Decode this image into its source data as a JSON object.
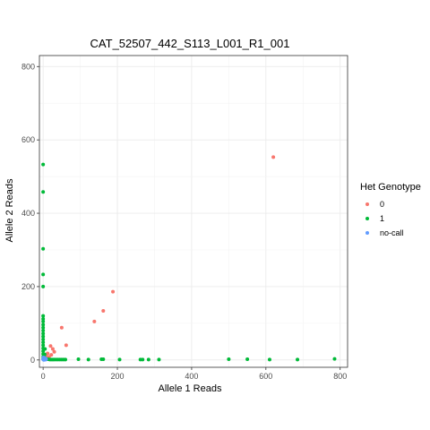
{
  "chart_data": {
    "type": "scatter",
    "title": "CAT_52507_442_S113_L001_R1_001",
    "xlabel": "Allele 1 Reads",
    "ylabel": "Allele 2 Reads",
    "xlim": [
      -10,
      820
    ],
    "ylim": [
      -20,
      830
    ],
    "x_ticks": [
      "0",
      "200",
      "400",
      "600",
      "800"
    ],
    "y_ticks": [
      "0",
      "200",
      "400",
      "600",
      "800"
    ],
    "grid": true,
    "legend": {
      "title": "Het Genotype",
      "placement": "right",
      "entries": [
        "0",
        "1",
        "no-call"
      ]
    },
    "series": [
      {
        "name": "0",
        "color": "#F8766D",
        "points": [
          [
            620,
            553
          ],
          [
            188,
            186
          ],
          [
            162,
            134
          ],
          [
            138,
            105
          ],
          [
            50,
            88
          ],
          [
            62,
            40
          ],
          [
            20,
            38
          ],
          [
            26,
            30
          ],
          [
            30,
            22
          ],
          [
            12,
            18
          ],
          [
            8,
            12
          ],
          [
            16,
            8
          ],
          [
            4,
            6
          ],
          [
            22,
            14
          ]
        ]
      },
      {
        "name": "1",
        "color": "#00BA38",
        "points": [
          [
            0,
            533
          ],
          [
            0,
            458
          ],
          [
            0,
            303
          ],
          [
            0,
            233
          ],
          [
            0,
            200
          ],
          [
            0,
            120
          ],
          [
            0,
            112
          ],
          [
            0,
            105
          ],
          [
            0,
            96
          ],
          [
            0,
            88
          ],
          [
            0,
            80
          ],
          [
            0,
            72
          ],
          [
            0,
            64
          ],
          [
            0,
            56
          ],
          [
            0,
            48
          ],
          [
            0,
            40
          ],
          [
            0,
            32
          ],
          [
            0,
            24
          ],
          [
            0,
            16
          ],
          [
            0,
            8
          ],
          [
            0,
            3
          ],
          [
            5,
            30
          ],
          [
            4,
            15
          ],
          [
            6,
            5
          ],
          [
            10,
            2
          ],
          [
            14,
            2
          ],
          [
            18,
            1
          ],
          [
            22,
            1
          ],
          [
            26,
            1
          ],
          [
            30,
            1
          ],
          [
            35,
            1
          ],
          [
            40,
            1
          ],
          [
            45,
            1
          ],
          [
            50,
            1
          ],
          [
            55,
            1
          ],
          [
            60,
            1
          ],
          [
            95,
            2
          ],
          [
            122,
            1
          ],
          [
            157,
            2
          ],
          [
            162,
            2
          ],
          [
            206,
            1
          ],
          [
            262,
            1
          ],
          [
            268,
            1
          ],
          [
            284,
            1
          ],
          [
            312,
            1
          ],
          [
            500,
            2
          ],
          [
            550,
            2
          ],
          [
            610,
            1
          ],
          [
            685,
            1
          ],
          [
            785,
            3
          ]
        ]
      },
      {
        "name": "no-call",
        "color": "#619CFF",
        "points": [
          [
            1,
            1
          ],
          [
            2,
            3
          ],
          [
            3,
            2
          ],
          [
            1,
            5
          ],
          [
            4,
            1
          ],
          [
            2,
            1
          ],
          [
            5,
            4
          ],
          [
            3,
            6
          ],
          [
            6,
            2
          ],
          [
            0,
            2
          ],
          [
            2,
            0
          ],
          [
            7,
            1
          ],
          [
            4,
            3
          ],
          [
            1,
            3
          ],
          [
            3,
            1
          ],
          [
            5,
            1
          ],
          [
            2,
            2
          ],
          [
            6,
            4
          ],
          [
            8,
            2
          ],
          [
            1,
            7
          ]
        ]
      }
    ]
  }
}
